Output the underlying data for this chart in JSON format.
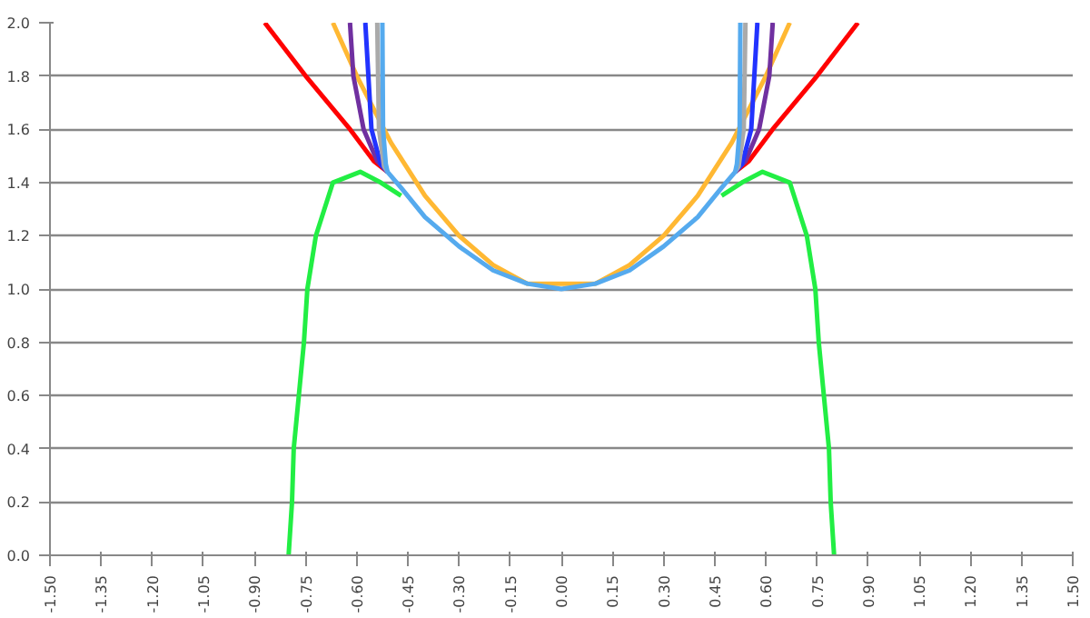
{
  "chart_data": {
    "type": "line",
    "grid": "y",
    "xlim": [
      -1.5,
      1.5
    ],
    "ylim": [
      0,
      2
    ],
    "xticks": [
      {
        "value": -1.5,
        "label": "-1.50"
      },
      {
        "value": -1.35,
        "label": "-1.35"
      },
      {
        "value": -1.2,
        "label": "-1.20"
      },
      {
        "value": -1.05,
        "label": "-1.05"
      },
      {
        "value": -0.9,
        "label": "-0.90"
      },
      {
        "value": -0.75,
        "label": "-0.75"
      },
      {
        "value": -0.6,
        "label": "-0.60"
      },
      {
        "value": -0.45,
        "label": "-0.45"
      },
      {
        "value": -0.3,
        "label": "-0.30"
      },
      {
        "value": -0.15,
        "label": "-0.15"
      },
      {
        "value": 0,
        "label": "0.00"
      },
      {
        "value": 0.15,
        "label": "0.15"
      },
      {
        "value": 0.3,
        "label": "0.30"
      },
      {
        "value": 0.45,
        "label": "0.45"
      },
      {
        "value": 0.6,
        "label": "0.60"
      },
      {
        "value": 0.75,
        "label": "0.75"
      },
      {
        "value": 0.9,
        "label": "0.90"
      },
      {
        "value": 1.05,
        "label": "1.05"
      },
      {
        "value": 1.2,
        "label": "1.20"
      },
      {
        "value": 1.35,
        "label": "1.35"
      },
      {
        "value": 1.5,
        "label": "1.50"
      }
    ],
    "yticks": [
      {
        "value": 0,
        "label": "0.0"
      },
      {
        "value": 0.2,
        "label": "0.2"
      },
      {
        "value": 0.4,
        "label": "0.4"
      },
      {
        "value": 0.6,
        "label": "0.6"
      },
      {
        "value": 0.8,
        "label": "0.8"
      },
      {
        "value": 1,
        "label": "1.0"
      },
      {
        "value": 1.2,
        "label": "1.2"
      },
      {
        "value": 1.4,
        "label": "1.4"
      },
      {
        "value": 1.6,
        "label": "1.6"
      },
      {
        "value": 1.8,
        "label": "1.8"
      },
      {
        "value": 2,
        "label": "2.0"
      }
    ],
    "series": [
      {
        "color": "#ff0000",
        "x": [
          -0.87,
          -0.75,
          -0.62,
          -0.55,
          -0.51,
          0,
          0.51,
          0.55,
          0.62,
          0.75,
          0.87
        ],
        "values": [
          2.0,
          1.8,
          1.6,
          1.48,
          1.44,
          null,
          1.44,
          1.48,
          1.6,
          1.8,
          2.0
        ]
      },
      {
        "color": "#ffb833",
        "x": [
          -0.67,
          -0.6,
          -0.5,
          -0.4,
          -0.3,
          -0.2,
          -0.1,
          0.1,
          0.2,
          0.3,
          0.4,
          0.5,
          0.6,
          0.67
        ],
        "values": [
          2.0,
          1.8,
          1.55,
          1.35,
          1.2,
          1.09,
          1.02,
          1.02,
          1.09,
          1.2,
          1.35,
          1.55,
          1.8,
          2.0
        ]
      },
      {
        "color": "#22ee44",
        "x": [
          -0.8,
          -0.79,
          -0.785,
          -0.77,
          -0.755,
          -0.745,
          -0.72,
          -0.67,
          -0.59,
          -0.53,
          -0.47,
          -0.4,
          -0.3,
          -0.2,
          -0.1,
          0,
          0.1,
          0.2,
          0.3,
          0.4,
          0.47,
          0.53,
          0.59,
          0.67,
          0.72,
          0.745,
          0.755,
          0.77,
          0.785,
          0.79,
          0.8
        ],
        "values": [
          0,
          0.2,
          0.4,
          0.6,
          0.8,
          1.0,
          1.2,
          1.4,
          1.44,
          1.4,
          1.35,
          null,
          null,
          null,
          null,
          null,
          null,
          null,
          null,
          null,
          1.35,
          1.4,
          1.44,
          1.4,
          1.2,
          1.0,
          0.8,
          0.6,
          0.4,
          0.2,
          0
        ]
      },
      {
        "color": "#7030a0",
        "x": [
          -0.62,
          -0.61,
          -0.58,
          -0.54,
          -0.51,
          0,
          0.51,
          0.54,
          0.58,
          0.61,
          0.62
        ],
        "values": [
          2.0,
          1.8,
          1.6,
          1.48,
          1.44,
          null,
          1.44,
          1.48,
          1.6,
          1.8,
          2.0
        ]
      },
      {
        "color": "#2233ff",
        "x": [
          -0.575,
          -0.557,
          -0.53,
          -0.51,
          0,
          0.51,
          0.53,
          0.557,
          0.575
        ],
        "values": [
          2.0,
          1.6,
          1.47,
          1.44,
          null,
          1.44,
          1.47,
          1.6,
          2.0
        ]
      },
      {
        "color": "#aaaaaa",
        "x": [
          -0.54,
          -0.535,
          -0.52,
          -0.51,
          0,
          0.51,
          0.52,
          0.535,
          0.54
        ],
        "values": [
          2.0,
          1.6,
          1.46,
          1.44,
          null,
          1.44,
          1.46,
          1.6,
          2.0
        ]
      },
      {
        "color": "#55aaee",
        "x": [
          -0.525,
          -0.523,
          -0.515,
          -0.51,
          -0.47,
          -0.4,
          -0.3,
          -0.2,
          -0.1,
          0,
          0.1,
          0.2,
          0.3,
          0.4,
          0.47,
          0.51,
          0.515,
          0.523,
          0.525
        ],
        "values": [
          2.0,
          1.6,
          1.47,
          1.44,
          1.38,
          1.27,
          1.16,
          1.07,
          1.02,
          1.0,
          1.02,
          1.07,
          1.16,
          1.27,
          1.38,
          1.44,
          1.47,
          1.6,
          2.0
        ]
      }
    ]
  }
}
